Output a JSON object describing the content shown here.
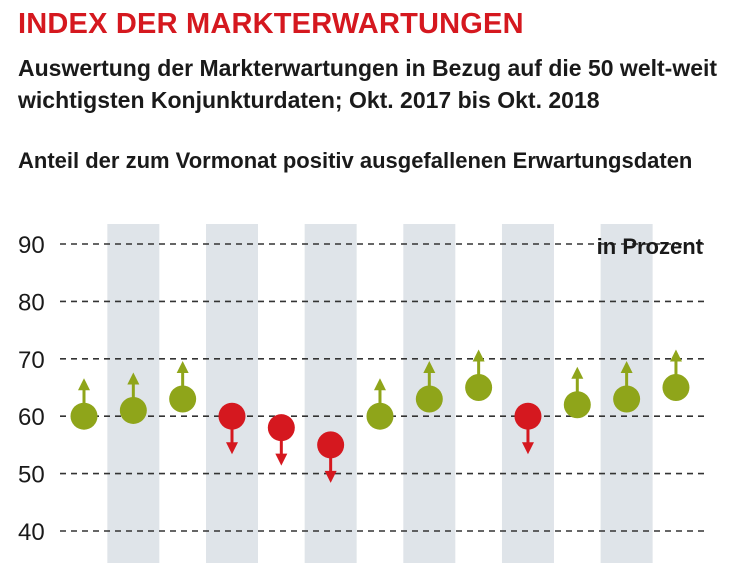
{
  "title": "INDEX DER MARKTERWARTUNGEN",
  "subtitle": "Auswertung der Markterwartungen in Bezug auf die 50 welt-weit wichtigsten Konjunkturdaten; Okt. 2017 bis Okt. 2018",
  "subtitle2": "Anteil der zum Vormonat positiv ausgefallenen Erwartungsdaten",
  "colors": {
    "up": "#8fa51a",
    "down": "#d5181f",
    "band": "#dfe4e9",
    "grid": "#333333",
    "title": "#d5181f"
  },
  "chart_data": {
    "type": "scatter",
    "unit_label": "in Prozent",
    "ylim": [
      40,
      90
    ],
    "yticks": [
      90,
      80,
      70,
      60,
      50,
      40
    ],
    "grid": "dashed-horizontal",
    "alternating_bands": true,
    "points": [
      {
        "value": 60,
        "direction": "up"
      },
      {
        "value": 61,
        "direction": "up"
      },
      {
        "value": 63,
        "direction": "up"
      },
      {
        "value": 60,
        "direction": "down"
      },
      {
        "value": 58,
        "direction": "down"
      },
      {
        "value": 55,
        "direction": "down"
      },
      {
        "value": 60,
        "direction": "up"
      },
      {
        "value": 63,
        "direction": "up"
      },
      {
        "value": 65,
        "direction": "up"
      },
      {
        "value": 60,
        "direction": "down"
      },
      {
        "value": 62,
        "direction": "up"
      },
      {
        "value": 63,
        "direction": "up"
      },
      {
        "value": 65,
        "direction": "up"
      }
    ]
  }
}
